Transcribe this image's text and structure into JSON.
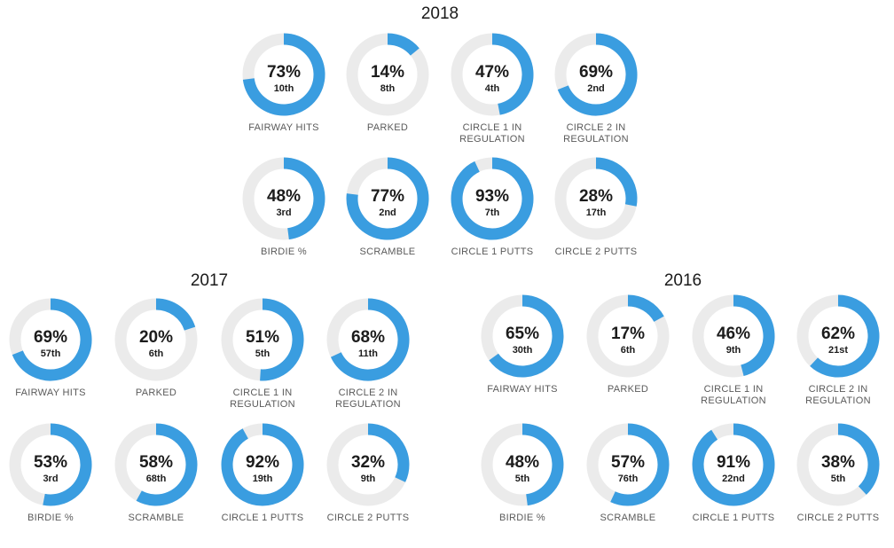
{
  "chart_data": [
    {
      "type": "donut",
      "title": "2018",
      "colors": {
        "filled": "#3a9de0",
        "track": "#ebebeb",
        "text": "#1c1c1c"
      },
      "stats": [
        {
          "label": "FAIRWAY HITS",
          "value": 73,
          "value_text": "73%",
          "rank": "10th"
        },
        {
          "label": "PARKED",
          "value": 14,
          "value_text": "14%",
          "rank": "8th"
        },
        {
          "label": "CIRCLE 1 IN\nREGULATION",
          "value": 47,
          "value_text": "47%",
          "rank": "4th"
        },
        {
          "label": "CIRCLE 2 IN\nREGULATION",
          "value": 69,
          "value_text": "69%",
          "rank": "2nd"
        },
        {
          "label": "BIRDIE %",
          "value": 48,
          "value_text": "48%",
          "rank": "3rd"
        },
        {
          "label": "SCRAMBLE",
          "value": 77,
          "value_text": "77%",
          "rank": "2nd"
        },
        {
          "label": "CIRCLE 1 PUTTS",
          "value": 93,
          "value_text": "93%",
          "rank": "7th"
        },
        {
          "label": "CIRCLE 2 PUTTS",
          "value": 28,
          "value_text": "28%",
          "rank": "17th"
        }
      ]
    },
    {
      "type": "donut",
      "title": "2017",
      "colors": {
        "filled": "#3a9de0",
        "track": "#ebebeb",
        "text": "#1c1c1c"
      },
      "stats": [
        {
          "label": "FAIRWAY HITS",
          "value": 69,
          "value_text": "69%",
          "rank": "57th"
        },
        {
          "label": "PARKED",
          "value": 20,
          "value_text": "20%",
          "rank": "6th"
        },
        {
          "label": "CIRCLE 1 IN\nREGULATION",
          "value": 51,
          "value_text": "51%",
          "rank": "5th"
        },
        {
          "label": "CIRCLE 2 IN\nREGULATION",
          "value": 68,
          "value_text": "68%",
          "rank": "11th"
        },
        {
          "label": "BIRDIE %",
          "value": 53,
          "value_text": "53%",
          "rank": "3rd"
        },
        {
          "label": "SCRAMBLE",
          "value": 58,
          "value_text": "58%",
          "rank": "68th"
        },
        {
          "label": "CIRCLE 1 PUTTS",
          "value": 92,
          "value_text": "92%",
          "rank": "19th"
        },
        {
          "label": "CIRCLE 2 PUTTS",
          "value": 32,
          "value_text": "32%",
          "rank": "9th"
        }
      ]
    },
    {
      "type": "donut",
      "title": "2016",
      "colors": {
        "filled": "#3a9de0",
        "track": "#ebebeb",
        "text": "#1c1c1c"
      },
      "stats": [
        {
          "label": "FAIRWAY HITS",
          "value": 65,
          "value_text": "65%",
          "rank": "30th"
        },
        {
          "label": "PARKED",
          "value": 17,
          "value_text": "17%",
          "rank": "6th"
        },
        {
          "label": "CIRCLE 1 IN\nREGULATION",
          "value": 46,
          "value_text": "46%",
          "rank": "9th"
        },
        {
          "label": "CIRCLE 2 IN\nREGULATION",
          "value": 62,
          "value_text": "62%",
          "rank": "21st"
        },
        {
          "label": "BIRDIE %",
          "value": 48,
          "value_text": "48%",
          "rank": "5th"
        },
        {
          "label": "SCRAMBLE",
          "value": 57,
          "value_text": "57%",
          "rank": "76th"
        },
        {
          "label": "CIRCLE 1 PUTTS",
          "value": 91,
          "value_text": "91%",
          "rank": "22nd"
        },
        {
          "label": "CIRCLE 2 PUTTS",
          "value": 38,
          "value_text": "38%",
          "rank": "5th"
        }
      ]
    }
  ]
}
